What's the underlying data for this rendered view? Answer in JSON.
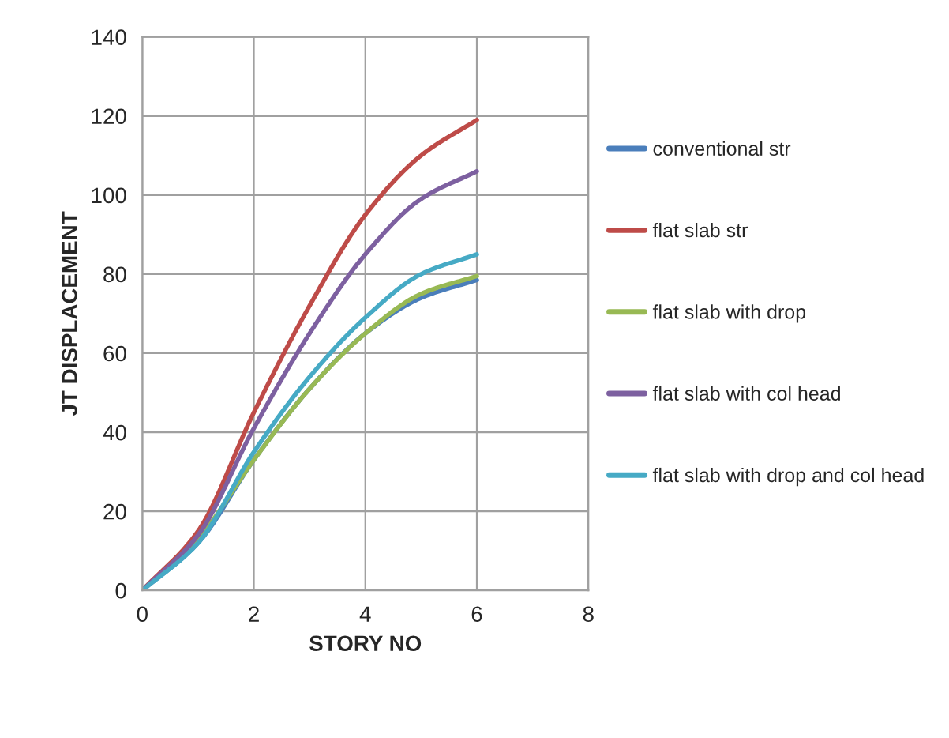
{
  "chart_data": {
    "type": "line",
    "xlabel": "STORY NO",
    "ylabel": "JT DISPLACEMENT",
    "x": [
      0,
      1,
      2,
      3,
      4,
      5,
      6
    ],
    "series": [
      {
        "name": "conventional str",
        "color": "#4a7ebb",
        "values": [
          0,
          12,
          33,
          51,
          65,
          74,
          78.5
        ]
      },
      {
        "name": "flat slab str",
        "color": "#be4b48",
        "values": [
          0,
          15,
          45,
          72,
          95,
          110,
          119
        ]
      },
      {
        "name": "flat slab with drop",
        "color": "#98b954",
        "values": [
          0,
          13,
          33,
          51,
          65,
          75,
          79.5
        ]
      },
      {
        "name": "flat slab with col head",
        "color": "#7d60a0",
        "values": [
          0,
          14,
          41,
          65,
          85,
          99,
          106
        ]
      },
      {
        "name": "flat slab with drop and col head",
        "color": "#46aac5",
        "values": [
          0,
          12,
          35,
          54,
          69,
          80,
          85
        ]
      }
    ],
    "xlim": [
      0,
      8
    ],
    "xticks": [
      0,
      2,
      4,
      6,
      8
    ],
    "ylim": [
      0,
      140
    ],
    "yticks": [
      0,
      20,
      40,
      60,
      80,
      100,
      120,
      140
    ],
    "grid": true,
    "legend": "right",
    "marker": "none",
    "line_style": "solid"
  }
}
